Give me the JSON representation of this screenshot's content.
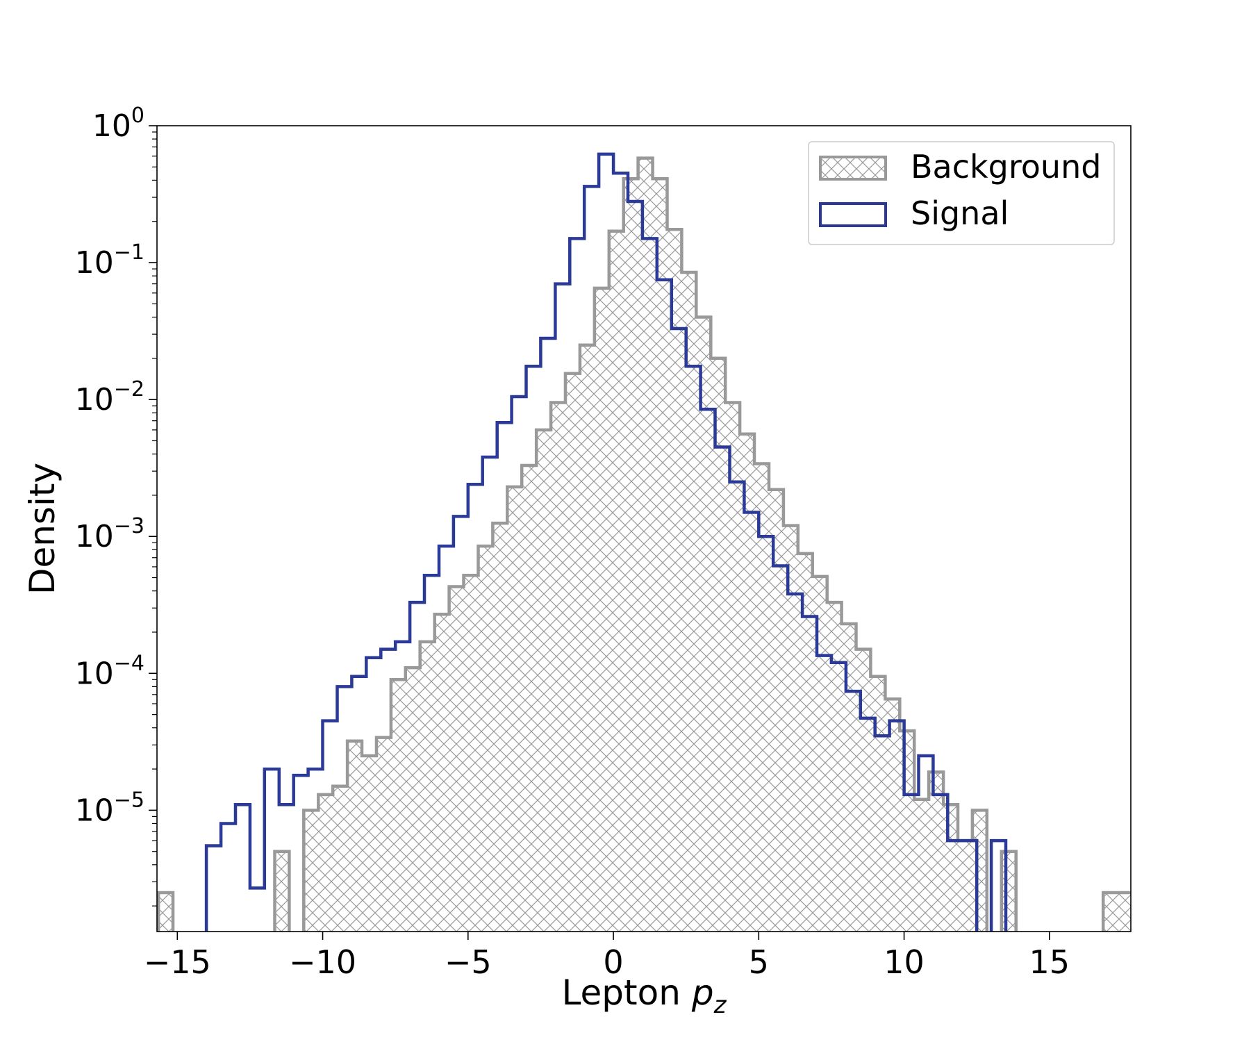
{
  "chart_data": {
    "type": "histogram",
    "xlabel_text": "Lepton ",
    "xlabel_symbol": "p",
    "xlabel_subscript": "z",
    "ylabel": "Density",
    "xlim": [
      -15.7,
      17.8
    ],
    "ylim": [
      1.3e-06,
      1.0
    ],
    "yscale": "log",
    "bin_width": 0.5,
    "x_ticks": [
      -15,
      -10,
      -5,
      0,
      5,
      10,
      15
    ],
    "x_tick_labels": [
      "−15",
      "−10",
      "−5",
      "0",
      "5",
      "10",
      "15"
    ],
    "y_ticks": [
      {
        "value": 1,
        "base": "10",
        "exp": "0"
      },
      {
        "value": 0.1,
        "base": "10",
        "exp": "−1"
      },
      {
        "value": 0.01,
        "base": "10",
        "exp": "−2"
      },
      {
        "value": 0.001,
        "base": "10",
        "exp": "−3"
      },
      {
        "value": 0.0001,
        "base": "10",
        "exp": "−4"
      },
      {
        "value": 1e-05,
        "base": "10",
        "exp": "−5"
      }
    ],
    "legend": {
      "placement": "upper-right",
      "entries": [
        "Background",
        "Signal"
      ]
    },
    "series": [
      {
        "name": "Background",
        "style": "hatched-fill",
        "color": "#999999",
        "points": [
          [
            -15.65,
            2.5e-06
          ],
          [
            -15.15,
            0
          ],
          [
            -11.65,
            5e-06
          ],
          [
            -11.15,
            0
          ],
          [
            -10.65,
            1e-05
          ],
          [
            -10.15,
            1.3e-05
          ],
          [
            -9.65,
            1.5e-05
          ],
          [
            -9.15,
            3.2e-05
          ],
          [
            -8.65,
            2.5e-05
          ],
          [
            -8.15,
            3.4e-05
          ],
          [
            -7.65,
            9e-05
          ],
          [
            -7.15,
            0.00011
          ],
          [
            -6.65,
            0.00017
          ],
          [
            -6.15,
            0.00027
          ],
          [
            -5.65,
            0.00043
          ],
          [
            -5.15,
            0.00052
          ],
          [
            -4.65,
            0.00085
          ],
          [
            -4.15,
            0.00125
          ],
          [
            -3.65,
            0.0023
          ],
          [
            -3.15,
            0.0033
          ],
          [
            -2.65,
            0.006
          ],
          [
            -2.15,
            0.0095
          ],
          [
            -1.65,
            0.0155
          ],
          [
            -1.15,
            0.025
          ],
          [
            -0.65,
            0.065
          ],
          [
            -0.15,
            0.17
          ],
          [
            0.35,
            0.41
          ],
          [
            0.85,
            0.58
          ],
          [
            1.35,
            0.41
          ],
          [
            1.85,
            0.175
          ],
          [
            2.35,
            0.085
          ],
          [
            2.85,
            0.04
          ],
          [
            3.35,
            0.02
          ],
          [
            3.85,
            0.0095
          ],
          [
            4.35,
            0.0056
          ],
          [
            4.85,
            0.0034
          ],
          [
            5.35,
            0.0022
          ],
          [
            5.85,
            0.0012
          ],
          [
            6.35,
            0.00075
          ],
          [
            6.85,
            0.00051
          ],
          [
            7.35,
            0.00033
          ],
          [
            7.85,
            0.00023
          ],
          [
            8.35,
            0.00015
          ],
          [
            8.85,
            9.5e-05
          ],
          [
            9.35,
            6.5e-05
          ],
          [
            9.85,
            3.8e-05
          ],
          [
            10.35,
            1.2e-05
          ],
          [
            10.85,
            1.9e-05
          ],
          [
            11.35,
            1.1e-05
          ],
          [
            11.85,
            6e-06
          ],
          [
            12.35,
            1e-05
          ],
          [
            12.85,
            0
          ],
          [
            13.35,
            5e-06
          ],
          [
            13.85,
            0
          ],
          [
            16.85,
            2.5e-06
          ],
          [
            17.85,
            0
          ]
        ]
      },
      {
        "name": "Signal",
        "style": "step",
        "color": "#2b3a96",
        "points": [
          [
            -14.0,
            5.5e-06
          ],
          [
            -13.5,
            8e-06
          ],
          [
            -13.0,
            1.1e-05
          ],
          [
            -12.5,
            2.7e-06
          ],
          [
            -12.0,
            2e-05
          ],
          [
            -11.5,
            1.1e-05
          ],
          [
            -11.0,
            1.8e-05
          ],
          [
            -10.5,
            2e-05
          ],
          [
            -10.0,
            4.5e-05
          ],
          [
            -9.5,
            8e-05
          ],
          [
            -9.0,
            9.5e-05
          ],
          [
            -8.5,
            0.00013
          ],
          [
            -8.0,
            0.00015
          ],
          [
            -7.5,
            0.00017
          ],
          [
            -7.0,
            0.00033
          ],
          [
            -6.5,
            0.00052
          ],
          [
            -6.0,
            0.00085
          ],
          [
            -5.5,
            0.0014
          ],
          [
            -5.0,
            0.0024
          ],
          [
            -4.5,
            0.0038
          ],
          [
            -4.0,
            0.0068
          ],
          [
            -3.5,
            0.0105
          ],
          [
            -3.0,
            0.0175
          ],
          [
            -2.5,
            0.028
          ],
          [
            -2.0,
            0.07
          ],
          [
            -1.5,
            0.15
          ],
          [
            -1.0,
            0.36
          ],
          [
            -0.5,
            0.62
          ],
          [
            0.0,
            0.45
          ],
          [
            0.5,
            0.28
          ],
          [
            1.0,
            0.15
          ],
          [
            1.5,
            0.075
          ],
          [
            2.0,
            0.033
          ],
          [
            2.5,
            0.0175
          ],
          [
            3.0,
            0.0085
          ],
          [
            3.5,
            0.0045
          ],
          [
            4.0,
            0.0025
          ],
          [
            4.5,
            0.0015
          ],
          [
            5.0,
            0.001
          ],
          [
            5.5,
            0.00061
          ],
          [
            6.0,
            0.00038
          ],
          [
            6.5,
            0.00026
          ],
          [
            7.0,
            0.000135
          ],
          [
            7.5,
            0.00012
          ],
          [
            8.0,
            7.4e-05
          ],
          [
            8.5,
            4.7e-05
          ],
          [
            9.0,
            3.5e-05
          ],
          [
            9.5,
            4.5e-05
          ],
          [
            10.0,
            1.3e-05
          ],
          [
            10.5,
            2.5e-05
          ],
          [
            11.0,
            1.3e-05
          ],
          [
            11.5,
            6e-06
          ],
          [
            12.0,
            6e-06
          ],
          [
            12.5,
            0
          ],
          [
            13.0,
            6e-06
          ],
          [
            13.5,
            0
          ]
        ]
      }
    ]
  }
}
